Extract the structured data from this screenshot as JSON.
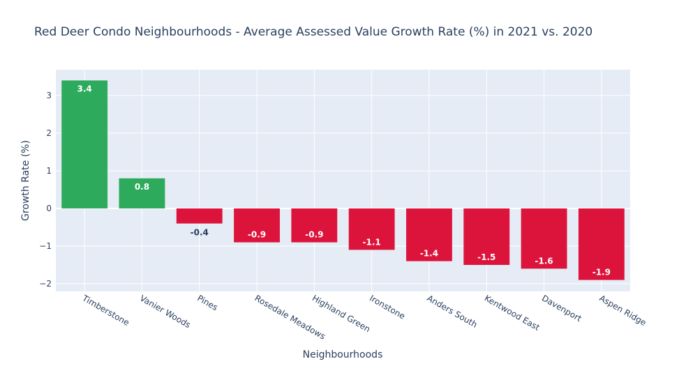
{
  "chart_data": {
    "type": "bar",
    "title": "Red Deer Condo Neighbourhoods - Average Assessed Value Growth Rate (%) in 2021 vs. 2020",
    "xlabel": "Neighbourhoods",
    "ylabel": "Growth Rate (%)",
    "categories": [
      "Timberstone",
      "Vanier Woods",
      "Pines",
      "Rosedale Meadows",
      "Highland Green",
      "Ironstone",
      "Anders South",
      "Kentwood East",
      "Davenport",
      "Aspen Ridge"
    ],
    "values": [
      3.4,
      0.8,
      -0.4,
      -0.9,
      -0.9,
      -1.1,
      -1.4,
      -1.5,
      -1.6,
      -1.9
    ],
    "value_labels": [
      "3.4",
      "0.8",
      "-0.4",
      "-0.9",
      "-0.9",
      "-1.1",
      "-1.4",
      "-1.5",
      "-1.6",
      "-1.9"
    ],
    "ylim": [
      -2.2,
      3.5
    ],
    "yticks": [
      -2,
      -1,
      0,
      1,
      2,
      3
    ],
    "ytick_labels": [
      "−2",
      "−1",
      "0",
      "1",
      "2",
      "3"
    ],
    "grid": true,
    "colors": {
      "positive": "#2eaa5c",
      "negative": "#dc143c",
      "plot_background": "#e5ecf6",
      "grid": "#ffffff",
      "text": "#2a3f5f"
    }
  }
}
